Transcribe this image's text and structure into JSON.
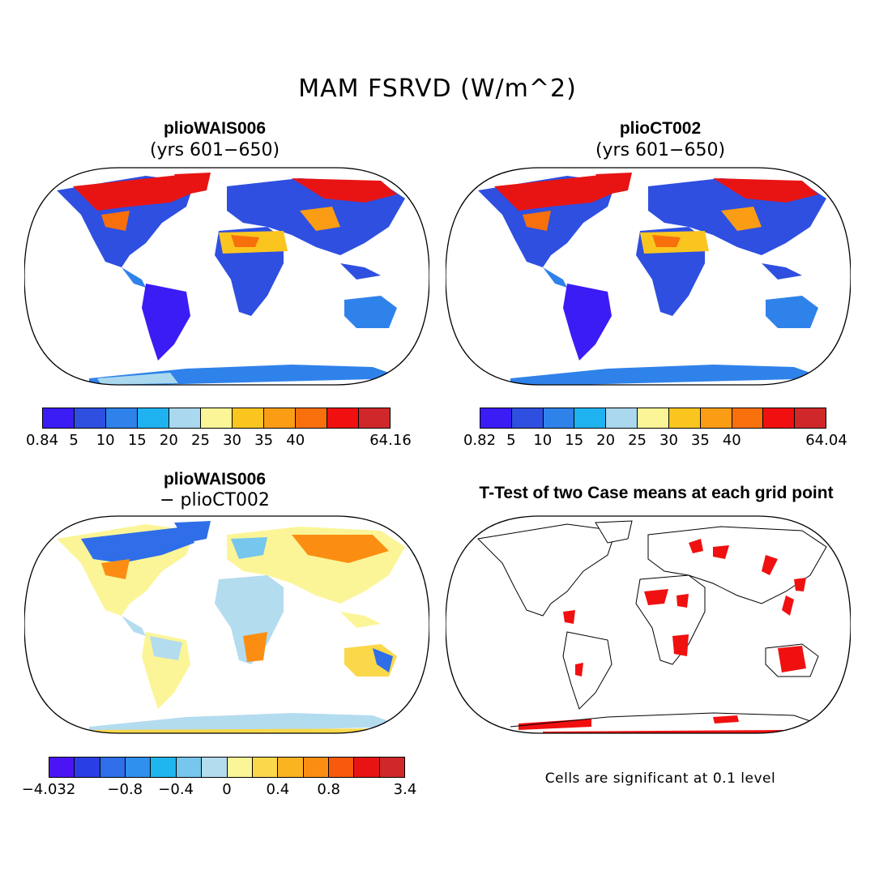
{
  "main_title": "MAM FSRVD (W/m^2)",
  "panels": [
    {
      "id": "p1",
      "title": "plioWAIS006",
      "subtitle": "(yrs 601−650)"
    },
    {
      "id": "p2",
      "title": "plioCT002",
      "subtitle": "(yrs 601−650)"
    },
    {
      "id": "p3",
      "title": "plioWAIS006",
      "subtitle": "− plioCT002"
    },
    {
      "id": "p4",
      "title": "T-Test of two Case means at each grid point",
      "subtitle": ""
    }
  ],
  "colorbars": [
    {
      "id": "cb1",
      "colors": [
        "#3b1cf5",
        "#2e4fe0",
        "#2f82ea",
        "#1fb2f0",
        "#a9d8ef",
        "#fbf597",
        "#fbc51f",
        "#fb9d14",
        "#f7700c",
        "#f01010",
        "#d0282a"
      ],
      "ticks": [
        "0.84",
        "5",
        "10",
        "15",
        "20",
        "25",
        "30",
        "35",
        "40",
        "64.16"
      ]
    },
    {
      "id": "cb2",
      "colors": [
        "#3b1cf5",
        "#2e4fe0",
        "#2f82ea",
        "#1fb2f0",
        "#a9d8ef",
        "#fbf597",
        "#fbc51f",
        "#fb9d14",
        "#f7700c",
        "#f01010",
        "#d0282a"
      ],
      "ticks": [
        "0.82",
        "5",
        "10",
        "15",
        "20",
        "25",
        "30",
        "35",
        "40",
        "64.04"
      ]
    },
    {
      "id": "cb3",
      "colors": [
        "#4b14f5",
        "#2a3ee6",
        "#2f6ee8",
        "#2f90ee",
        "#1fb6f0",
        "#76c6ee",
        "#b4dcef",
        "#fbf597",
        "#fbd84a",
        "#fbb320",
        "#fb8e12",
        "#f75a0c",
        "#e81414",
        "#d0282a"
      ],
      "ticks": [
        "−4.032",
        "−0.8",
        "−0.4",
        "0",
        "0.4",
        "0.8",
        "3.4"
      ]
    }
  ],
  "note": "Cells are significant at 0.1 level"
}
